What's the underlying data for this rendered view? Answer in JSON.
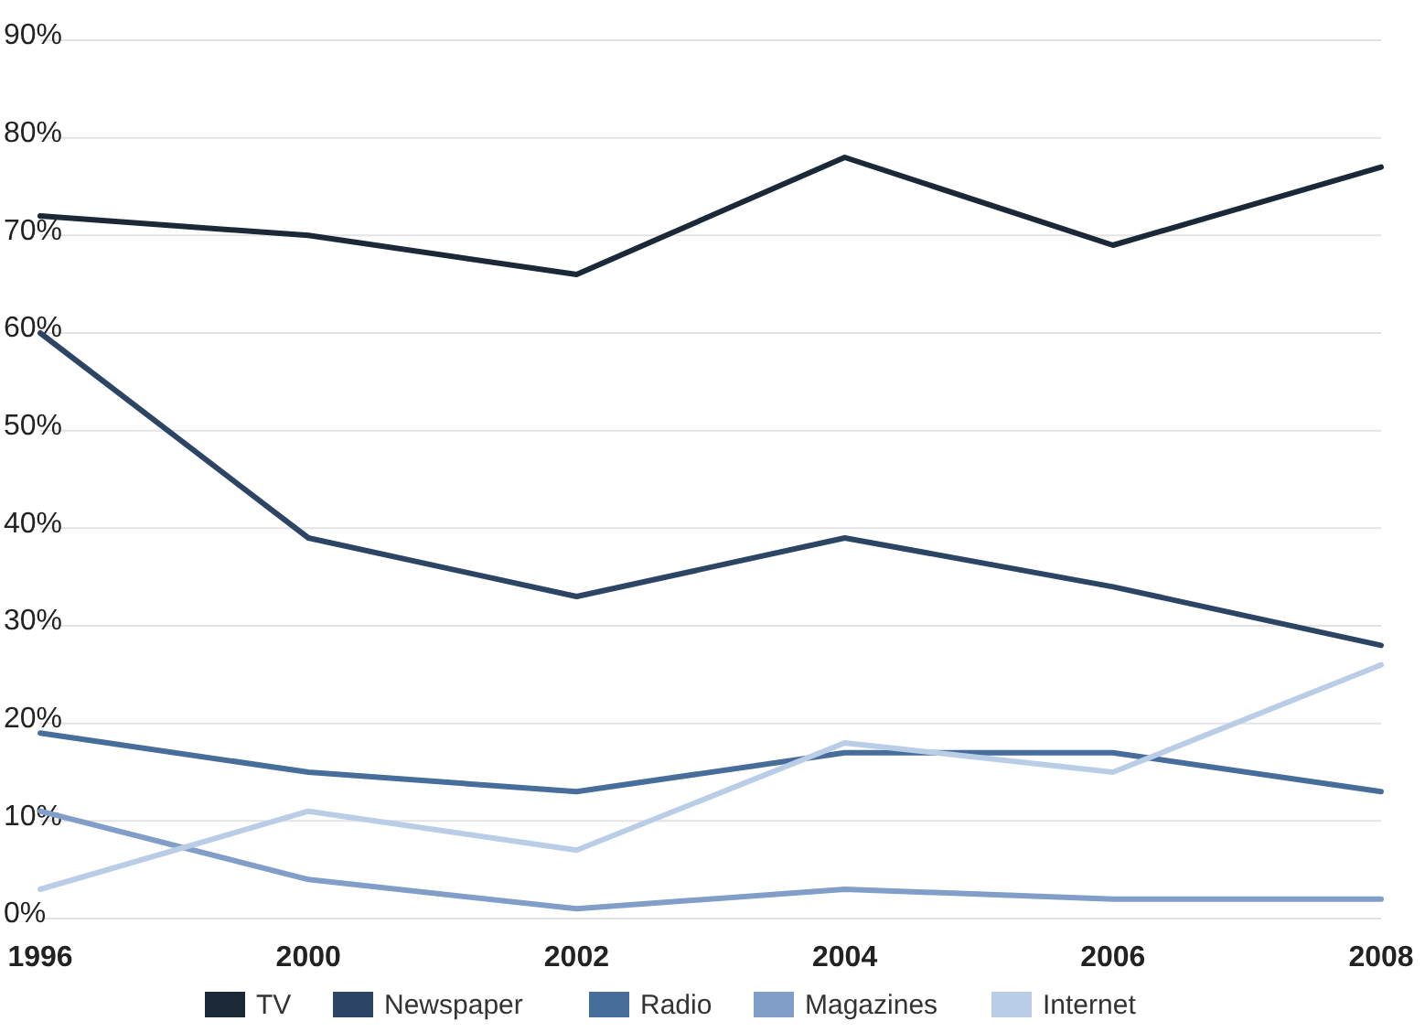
{
  "chart_data": {
    "type": "line",
    "categories": [
      "1996",
      "2000",
      "2002",
      "2004",
      "2006",
      "2008"
    ],
    "series": [
      {
        "name": "TV",
        "color": "#1b2838",
        "values": [
          72,
          70,
          66,
          78,
          69,
          77
        ]
      },
      {
        "name": "Newspaper",
        "color": "#2d4565",
        "values": [
          60,
          39,
          33,
          39,
          34,
          28
        ]
      },
      {
        "name": "Radio",
        "color": "#476d9b",
        "values": [
          19,
          15,
          13,
          17,
          17,
          13
        ]
      },
      {
        "name": "Magazines",
        "color": "#819ec8",
        "values": [
          11,
          4,
          1,
          3,
          2,
          2
        ]
      },
      {
        "name": "Internet",
        "color": "#bacde6",
        "values": [
          3,
          11,
          7,
          18,
          15,
          26
        ]
      }
    ],
    "ylim": [
      0,
      90
    ],
    "yticks": [
      {
        "value": 0,
        "label": "0%"
      },
      {
        "value": 10,
        "label": "10%"
      },
      {
        "value": 20,
        "label": "20%"
      },
      {
        "value": 30,
        "label": "30%"
      },
      {
        "value": 40,
        "label": "40%"
      },
      {
        "value": 50,
        "label": "50%"
      },
      {
        "value": 60,
        "label": "60%"
      },
      {
        "value": 70,
        "label": "70%"
      },
      {
        "value": 80,
        "label": "80%"
      },
      {
        "value": 90,
        "label": "90%"
      }
    ],
    "grid": "y",
    "legend": "bottom",
    "marker": "none",
    "line_style": "solid"
  }
}
